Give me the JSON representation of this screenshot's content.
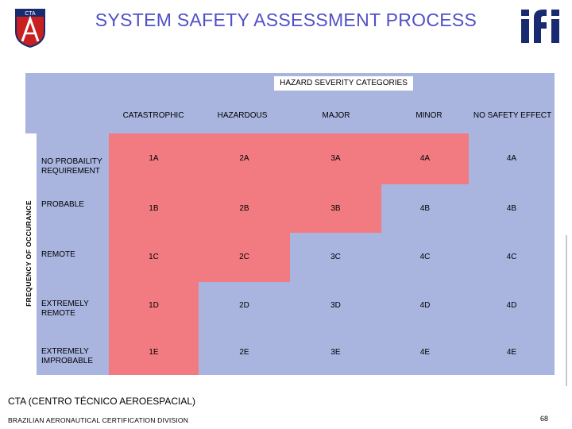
{
  "title": "SYSTEM SAFETY ASSESSMENT PROCESS",
  "matrix": {
    "header": "HAZARD SEVERITY CATEGORIES",
    "vertical_axis": "FREQUENCY OF OCCURANCE",
    "columns": [
      "CATASTROPHIC",
      "HAZARDOUS",
      "MAJOR",
      "MINOR",
      "NO SAFETY EFFECT"
    ],
    "rows": [
      {
        "label": "NO PROBAILITY REQUIREMENT",
        "cells": [
          "1A",
          "2A",
          "3A",
          "4A",
          "4A"
        ]
      },
      {
        "label": "PROBABLE",
        "cells": [
          "1B",
          "2B",
          "3B",
          "4B",
          "4B"
        ]
      },
      {
        "label": "REMOTE",
        "cells": [
          "1C",
          "2C",
          "3C",
          "4C",
          "4C"
        ]
      },
      {
        "label": "EXTREMELY REMOTE",
        "cells": [
          "1D",
          "2D",
          "3D",
          "4D",
          "4D"
        ]
      },
      {
        "label": "EXTREMELY IMPROBABLE",
        "cells": [
          "1E",
          "2E",
          "3E",
          "4E",
          "4E"
        ]
      }
    ],
    "colors": {
      "unacceptable": "#f27b81",
      "acceptable": "#a9b4df"
    }
  },
  "footer": {
    "line1": "CTA (CENTRO TÉCNICO AEROESPACIAL)",
    "line2": "BRAZILIAN AERONAUTICAL CERTIFICATION DIVISION"
  },
  "page_number": "68",
  "logos": {
    "left_text": "CTA",
    "left_icon": "cta-emblem-icon",
    "right_icon": "ifi-logo-icon"
  }
}
